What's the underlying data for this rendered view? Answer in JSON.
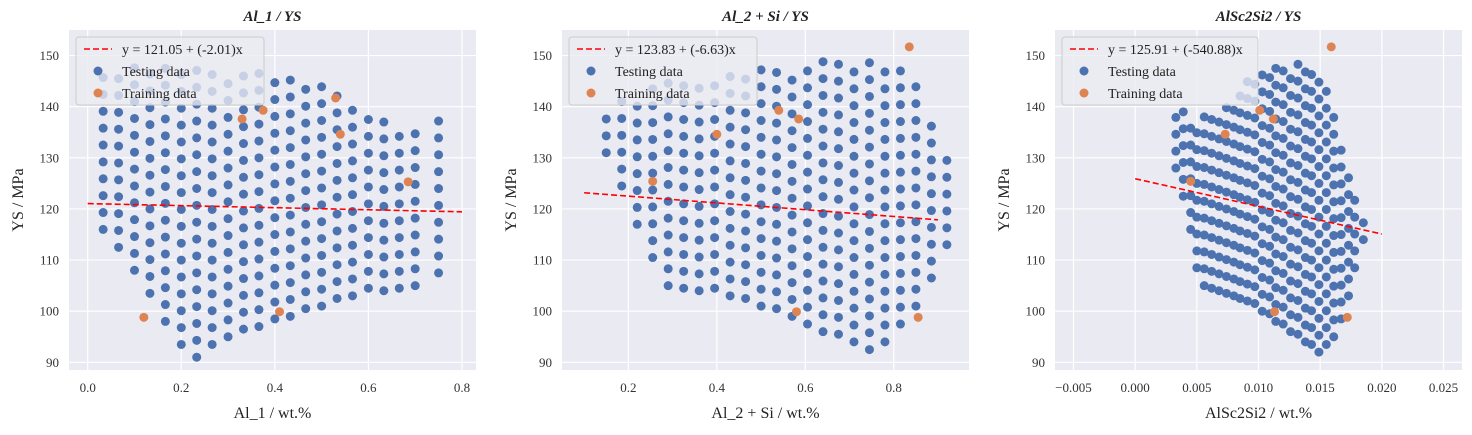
{
  "chart_data": [
    {
      "type": "scatter",
      "title": "Al_1 / YS",
      "xlabel": "Al_1 / wt.%",
      "ylabel": "YS / MPa",
      "xlim": [
        -0.04,
        0.83
      ],
      "ylim": [
        88.5,
        155
      ],
      "xticks": [
        0.0,
        0.2,
        0.4,
        0.6,
        0.8
      ],
      "xtick_labels": [
        "0.0",
        "0.2",
        "0.4",
        "0.6",
        "0.8"
      ],
      "yticks": [
        90,
        100,
        110,
        120,
        130,
        140,
        150
      ],
      "grid": true,
      "legend_position": "top-left",
      "fit": {
        "label": "y = 121.05 + (-2.01)x",
        "intercept": 121.05,
        "slope": -2.01,
        "x_range": [
          0.0,
          0.8
        ],
        "color": "#ff0000"
      },
      "testing": {
        "label": "Testing data",
        "color": "#4c72b0",
        "grid_pattern": {
          "x_start": 0.033,
          "x_step": 0.0333,
          "columns": 22
        },
        "columns": [
          {
            "x": 0.033,
            "ymin": 116,
            "ymax": 148
          },
          {
            "x": 0.066,
            "ymin": 112,
            "ymax": 148
          },
          {
            "x": 0.1,
            "ymin": 108,
            "ymax": 149
          },
          {
            "x": 0.133,
            "ymin": 103,
            "ymax": 149
          },
          {
            "x": 0.166,
            "ymin": 98,
            "ymax": 149
          },
          {
            "x": 0.2,
            "ymin": 93,
            "ymax": 148
          },
          {
            "x": 0.233,
            "ymin": 91,
            "ymax": 148
          },
          {
            "x": 0.266,
            "ymin": 93,
            "ymax": 148
          },
          {
            "x": 0.3,
            "ymin": 95,
            "ymax": 147
          },
          {
            "x": 0.333,
            "ymin": 96,
            "ymax": 147
          },
          {
            "x": 0.366,
            "ymin": 97,
            "ymax": 147
          },
          {
            "x": 0.4,
            "ymin": 98,
            "ymax": 147
          },
          {
            "x": 0.433,
            "ymin": 99,
            "ymax": 146
          },
          {
            "x": 0.466,
            "ymin": 100,
            "ymax": 145
          },
          {
            "x": 0.5,
            "ymin": 101,
            "ymax": 144
          },
          {
            "x": 0.533,
            "ymin": 102,
            "ymax": 143
          },
          {
            "x": 0.566,
            "ymin": 103,
            "ymax": 141
          },
          {
            "x": 0.6,
            "ymin": 104,
            "ymax": 139
          },
          {
            "x": 0.633,
            "ymin": 104,
            "ymax": 137
          },
          {
            "x": 0.666,
            "ymin": 104,
            "ymax": 136
          },
          {
            "x": 0.7,
            "ymin": 105,
            "ymax": 137
          },
          {
            "x": 0.75,
            "ymin": 107,
            "ymax": 140
          }
        ]
      },
      "training": {
        "label": "Training data",
        "color": "#dd8452",
        "points": [
          [
            0.12,
            98.8
          ],
          [
            0.33,
            137.6
          ],
          [
            0.375,
            139.3
          ],
          [
            0.41,
            99.9
          ],
          [
            0.53,
            141.7
          ],
          [
            0.54,
            134.6
          ],
          [
            0.685,
            125.3
          ]
        ]
      }
    },
    {
      "type": "scatter",
      "title": "Al_2 + Si / YS",
      "xlabel": "Al_2 + Si / wt.%",
      "ylabel": "YS / MPa",
      "xlim": [
        0.05,
        0.97
      ],
      "ylim": [
        88.5,
        155
      ],
      "xticks": [
        0.2,
        0.4,
        0.6,
        0.8
      ],
      "xtick_labels": [
        "0.2",
        "0.4",
        "0.6",
        "0.8"
      ],
      "yticks": [
        90,
        100,
        110,
        120,
        130,
        140,
        150
      ],
      "grid": true,
      "legend_position": "top-left",
      "fit": {
        "label": "y = 123.83 + (-6.63)x",
        "intercept": 123.83,
        "slope": -6.63,
        "x_range": [
          0.1,
          0.9
        ],
        "color": "#ff0000"
      },
      "testing": {
        "label": "Testing data",
        "color": "#4c72b0",
        "grid_pattern": {
          "x_start": 0.15,
          "x_step": 0.0345,
          "columns": 23
        },
        "columns": [
          {
            "x": 0.15,
            "ymin": 131,
            "ymax": 139
          },
          {
            "x": 0.185,
            "ymin": 124,
            "ymax": 141
          },
          {
            "x": 0.22,
            "ymin": 117,
            "ymax": 143
          },
          {
            "x": 0.255,
            "ymin": 110,
            "ymax": 144
          },
          {
            "x": 0.29,
            "ymin": 105,
            "ymax": 145
          },
          {
            "x": 0.325,
            "ymin": 104,
            "ymax": 146
          },
          {
            "x": 0.36,
            "ymin": 104,
            "ymax": 146
          },
          {
            "x": 0.395,
            "ymin": 104,
            "ymax": 147
          },
          {
            "x": 0.43,
            "ymin": 103,
            "ymax": 147
          },
          {
            "x": 0.465,
            "ymin": 102,
            "ymax": 147
          },
          {
            "x": 0.5,
            "ymin": 101,
            "ymax": 148
          },
          {
            "x": 0.535,
            "ymin": 100,
            "ymax": 148
          },
          {
            "x": 0.57,
            "ymin": 99,
            "ymax": 148
          },
          {
            "x": 0.605,
            "ymin": 97,
            "ymax": 148
          },
          {
            "x": 0.64,
            "ymin": 96,
            "ymax": 149
          },
          {
            "x": 0.675,
            "ymin": 95,
            "ymax": 149
          },
          {
            "x": 0.71,
            "ymin": 94,
            "ymax": 149
          },
          {
            "x": 0.745,
            "ymin": 92,
            "ymax": 149
          },
          {
            "x": 0.78,
            "ymin": 94,
            "ymax": 149
          },
          {
            "x": 0.815,
            "ymin": 97,
            "ymax": 148
          },
          {
            "x": 0.85,
            "ymin": 101,
            "ymax": 144
          },
          {
            "x": 0.885,
            "ymin": 106,
            "ymax": 138
          },
          {
            "x": 0.92,
            "ymin": 113,
            "ymax": 130
          }
        ]
      },
      "training": {
        "label": "Training data",
        "color": "#dd8452",
        "points": [
          [
            0.255,
            125.4
          ],
          [
            0.4,
            134.6
          ],
          [
            0.54,
            139.3
          ],
          [
            0.585,
            137.6
          ],
          [
            0.58,
            99.9
          ],
          [
            0.835,
            151.7
          ],
          [
            0.855,
            98.8
          ]
        ]
      }
    },
    {
      "type": "scatter",
      "title": "AlSc2Si2 / YS",
      "xlabel": "AlSc2Si2 / wt.%",
      "ylabel": "YS / MPa",
      "xlim": [
        -0.0065,
        0.0265
      ],
      "ylim": [
        88.5,
        155
      ],
      "xticks": [
        -0.005,
        0.0,
        0.005,
        0.01,
        0.015,
        0.02,
        0.025
      ],
      "xtick_labels": [
        "−0.005",
        "0.000",
        "0.005",
        "0.010",
        "0.015",
        "0.020",
        "0.025"
      ],
      "yticks": [
        90,
        100,
        110,
        120,
        130,
        140,
        150
      ],
      "grid": true,
      "legend_position": "top-left",
      "fit": {
        "label": "y = 125.91 + (-540.88)x",
        "intercept": 125.91,
        "slope": -540.88,
        "x_range": [
          0.0,
          0.02
        ],
        "color": "#ff0000"
      },
      "testing": {
        "label": "Testing data",
        "color": "#4c72b0",
        "grid_pattern": {
          "x_start": 0.0033,
          "x_step": 0.00058,
          "columns": 27
        },
        "columns": [
          {
            "x": 0.0033,
            "ymin": 128,
            "ymax": 141
          },
          {
            "x": 0.0039,
            "ymin": 122,
            "ymax": 140
          },
          {
            "x": 0.0045,
            "ymin": 116,
            "ymax": 139
          },
          {
            "x": 0.005,
            "ymin": 108,
            "ymax": 138
          },
          {
            "x": 0.0056,
            "ymin": 105,
            "ymax": 138
          },
          {
            "x": 0.0062,
            "ymin": 104,
            "ymax": 139
          },
          {
            "x": 0.0068,
            "ymin": 104,
            "ymax": 140
          },
          {
            "x": 0.0074,
            "ymin": 103,
            "ymax": 141
          },
          {
            "x": 0.008,
            "ymin": 103,
            "ymax": 142
          },
          {
            "x": 0.0085,
            "ymin": 102,
            "ymax": 144
          },
          {
            "x": 0.0091,
            "ymin": 102,
            "ymax": 145
          },
          {
            "x": 0.0097,
            "ymin": 101,
            "ymax": 146
          },
          {
            "x": 0.0103,
            "ymin": 100,
            "ymax": 147
          },
          {
            "x": 0.0109,
            "ymin": 99,
            "ymax": 147
          },
          {
            "x": 0.0114,
            "ymin": 98,
            "ymax": 148
          },
          {
            "x": 0.012,
            "ymin": 97,
            "ymax": 148
          },
          {
            "x": 0.0126,
            "ymin": 96,
            "ymax": 148
          },
          {
            "x": 0.0132,
            "ymin": 95,
            "ymax": 149
          },
          {
            "x": 0.0138,
            "ymin": 94,
            "ymax": 149
          },
          {
            "x": 0.0143,
            "ymin": 93,
            "ymax": 149
          },
          {
            "x": 0.0149,
            "ymin": 92,
            "ymax": 148
          },
          {
            "x": 0.0155,
            "ymin": 93,
            "ymax": 146
          },
          {
            "x": 0.0161,
            "ymin": 95,
            "ymax": 141
          },
          {
            "x": 0.0167,
            "ymin": 98,
            "ymax": 134
          },
          {
            "x": 0.0173,
            "ymin": 103,
            "ymax": 128
          },
          {
            "x": 0.0178,
            "ymin": 108,
            "ymax": 123
          },
          {
            "x": 0.0185,
            "ymin": 114,
            "ymax": 119
          }
        ]
      },
      "training": {
        "label": "Training data",
        "color": "#dd8452",
        "points": [
          [
            0.0045,
            125.4
          ],
          [
            0.0073,
            134.6
          ],
          [
            0.0101,
            139.3
          ],
          [
            0.0112,
            137.6
          ],
          [
            0.0113,
            99.9
          ],
          [
            0.0159,
            151.7
          ],
          [
            0.0172,
            98.8
          ]
        ]
      }
    }
  ]
}
